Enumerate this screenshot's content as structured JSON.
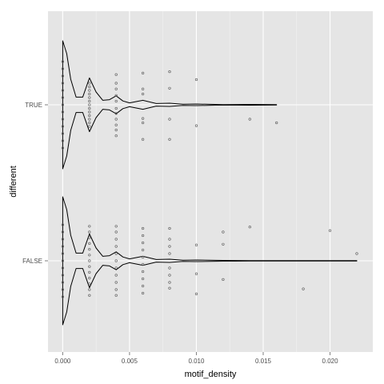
{
  "chart_data": {
    "type": "violin",
    "title": "",
    "xlabel": "motif_density",
    "ylabel": "different",
    "xlim": [
      -0.0011,
      0.0232
    ],
    "x_ticks": [
      0.0,
      0.005,
      0.01,
      0.015,
      0.02
    ],
    "x_tick_labels": [
      "0.000",
      "0.005",
      "0.010",
      "0.015",
      "0.020"
    ],
    "categories": [
      "TRUE",
      "FALSE"
    ],
    "grid": true,
    "legend": "none",
    "colors": {
      "panel": "#e5e5e5",
      "grid": "#ffffff",
      "violin": "#000000",
      "point": "#555555"
    },
    "groups": [
      {
        "name": "TRUE",
        "max_x": 0.016,
        "density_profile": [
          [
            0.0,
            1.0
          ],
          [
            0.0003,
            0.8
          ],
          [
            0.0006,
            0.4
          ],
          [
            0.001,
            0.12
          ],
          [
            0.0015,
            0.12
          ],
          [
            0.002,
            0.42
          ],
          [
            0.0025,
            0.2
          ],
          [
            0.003,
            0.07
          ],
          [
            0.0035,
            0.08
          ],
          [
            0.004,
            0.14
          ],
          [
            0.0045,
            0.06
          ],
          [
            0.005,
            0.03
          ],
          [
            0.006,
            0.07
          ],
          [
            0.007,
            0.02
          ],
          [
            0.008,
            0.025
          ],
          [
            0.009,
            0.01
          ],
          [
            0.01,
            0.012
          ],
          [
            0.012,
            0.004
          ],
          [
            0.014,
            0.006
          ],
          [
            0.016,
            0.003
          ]
        ],
        "points": [
          [
            0.0,
            0.0
          ],
          [
            0.0,
            0.1
          ],
          [
            0.0,
            0.2
          ],
          [
            0.0,
            0.3
          ],
          [
            0.0,
            0.4
          ],
          [
            0.0,
            0.5
          ],
          [
            0.0,
            0.6
          ],
          [
            0.0,
            -0.1
          ],
          [
            0.0,
            -0.2
          ],
          [
            0.0,
            -0.3
          ],
          [
            0.0,
            -0.4
          ],
          [
            0.0,
            -0.5
          ],
          [
            0.0,
            -0.6
          ],
          [
            0.002,
            0.0
          ],
          [
            0.002,
            0.05
          ],
          [
            0.002,
            0.1
          ],
          [
            0.002,
            0.15
          ],
          [
            0.002,
            0.2
          ],
          [
            0.002,
            0.25
          ],
          [
            0.002,
            0.3
          ],
          [
            0.002,
            -0.05
          ],
          [
            0.002,
            -0.1
          ],
          [
            0.002,
            -0.15
          ],
          [
            0.002,
            -0.2
          ],
          [
            0.002,
            -0.25
          ],
          [
            0.002,
            -0.3
          ],
          [
            0.004,
            0.05
          ],
          [
            0.004,
            0.12
          ],
          [
            0.004,
            0.2
          ],
          [
            0.004,
            0.28
          ],
          [
            0.004,
            0.35
          ],
          [
            0.004,
            0.43
          ],
          [
            0.004,
            -0.05
          ],
          [
            0.004,
            -0.13
          ],
          [
            0.004,
            -0.22
          ],
          [
            0.004,
            -0.3
          ],
          [
            0.004,
            -0.42
          ],
          [
            0.006,
            0.48
          ],
          [
            0.006,
            0.25
          ],
          [
            0.006,
            0.19
          ],
          [
            0.006,
            -0.15
          ],
          [
            0.006,
            -0.22
          ],
          [
            0.006,
            -0.44
          ],
          [
            0.008,
            0.48
          ],
          [
            0.008,
            0.2
          ],
          [
            0.008,
            -0.23
          ],
          [
            0.008,
            -0.46
          ],
          [
            0.01,
            0.29
          ],
          [
            0.01,
            -0.35
          ],
          [
            0.014,
            0.2
          ],
          [
            0.016,
            0.25
          ]
        ]
      },
      {
        "name": "FALSE",
        "max_x": 0.022,
        "density_profile": [
          [
            0.0,
            1.0
          ],
          [
            0.0003,
            0.8
          ],
          [
            0.0006,
            0.4
          ],
          [
            0.001,
            0.12
          ],
          [
            0.0015,
            0.12
          ],
          [
            0.002,
            0.42
          ],
          [
            0.0025,
            0.2
          ],
          [
            0.003,
            0.07
          ],
          [
            0.0035,
            0.08
          ],
          [
            0.004,
            0.14
          ],
          [
            0.0045,
            0.06
          ],
          [
            0.005,
            0.03
          ],
          [
            0.006,
            0.07
          ],
          [
            0.007,
            0.02
          ],
          [
            0.008,
            0.025
          ],
          [
            0.009,
            0.01
          ],
          [
            0.01,
            0.012
          ],
          [
            0.012,
            0.006
          ],
          [
            0.014,
            0.004
          ],
          [
            0.016,
            0.003
          ],
          [
            0.018,
            0.004
          ],
          [
            0.02,
            0.003
          ],
          [
            0.022,
            0.002
          ]
        ],
        "points": [
          [
            0.0,
            0.0
          ],
          [
            0.0,
            0.1
          ],
          [
            0.0,
            0.2
          ],
          [
            0.0,
            0.3
          ],
          [
            0.0,
            0.4
          ],
          [
            0.0,
            0.5
          ],
          [
            0.0,
            -0.1
          ],
          [
            0.0,
            -0.2
          ],
          [
            0.0,
            -0.3
          ],
          [
            0.0,
            -0.4
          ],
          [
            0.0,
            -0.5
          ],
          [
            0.002,
            0.0
          ],
          [
            0.002,
            0.08
          ],
          [
            0.002,
            0.16
          ],
          [
            0.002,
            0.24
          ],
          [
            0.002,
            0.32
          ],
          [
            0.002,
            0.4
          ],
          [
            0.002,
            0.48
          ],
          [
            0.002,
            -0.08
          ],
          [
            0.002,
            -0.16
          ],
          [
            0.002,
            -0.24
          ],
          [
            0.002,
            -0.32
          ],
          [
            0.002,
            -0.4
          ],
          [
            0.002,
            -0.48
          ],
          [
            0.004,
            0.0
          ],
          [
            0.004,
            0.1
          ],
          [
            0.004,
            0.2
          ],
          [
            0.004,
            0.3
          ],
          [
            0.004,
            0.4
          ],
          [
            0.004,
            0.48
          ],
          [
            0.004,
            -0.1
          ],
          [
            0.004,
            -0.2
          ],
          [
            0.004,
            -0.3
          ],
          [
            0.004,
            -0.4
          ],
          [
            0.004,
            -0.48
          ],
          [
            0.006,
            0.05
          ],
          [
            0.006,
            0.15
          ],
          [
            0.006,
            0.25
          ],
          [
            0.006,
            0.35
          ],
          [
            0.006,
            0.45
          ],
          [
            0.006,
            -0.05
          ],
          [
            0.006,
            -0.15
          ],
          [
            0.006,
            -0.25
          ],
          [
            0.006,
            -0.35
          ],
          [
            0.006,
            -0.45
          ],
          [
            0.008,
            0.1
          ],
          [
            0.008,
            0.2
          ],
          [
            0.008,
            0.3
          ],
          [
            0.008,
            0.38
          ],
          [
            0.008,
            -0.1
          ],
          [
            0.008,
            -0.2
          ],
          [
            0.008,
            -0.3
          ],
          [
            0.008,
            -0.45
          ],
          [
            0.01,
            0.46
          ],
          [
            0.01,
            0.18
          ],
          [
            0.01,
            -0.22
          ],
          [
            0.012,
            0.26
          ],
          [
            0.012,
            -0.23
          ],
          [
            0.012,
            -0.4
          ],
          [
            0.014,
            -0.47
          ],
          [
            0.018,
            0.39
          ],
          [
            0.02,
            -0.42
          ],
          [
            0.022,
            -0.1
          ]
        ]
      }
    ]
  }
}
